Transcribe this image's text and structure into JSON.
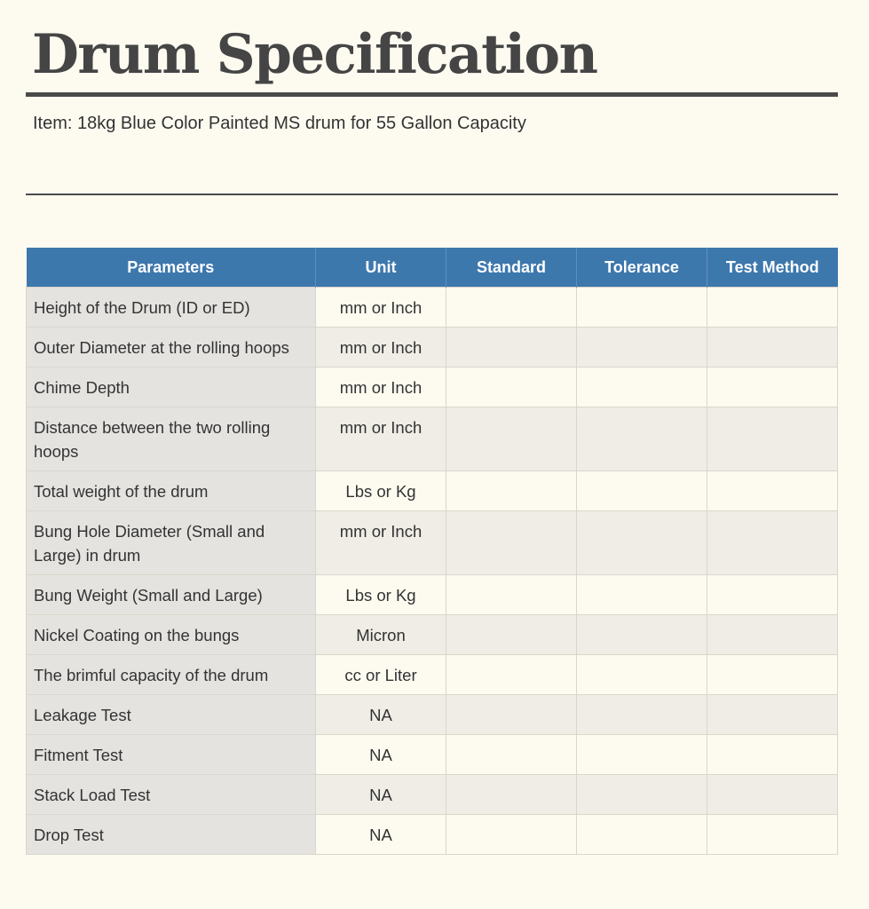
{
  "document": {
    "title": "Drum Specification",
    "item_line": "Item: 18kg Blue Color Painted MS drum for 55 Gallon Capacity"
  },
  "table": {
    "headers": [
      "Parameters",
      "Unit",
      "Standard",
      "Tolerance",
      "Test Method"
    ],
    "rows": [
      {
        "parameter": "Height of the Drum (ID or ED)",
        "unit": "mm or Inch",
        "standard": "",
        "tolerance": "",
        "test_method": ""
      },
      {
        "parameter": "Outer Diameter at the rolling hoops",
        "unit": "mm or Inch",
        "standard": "",
        "tolerance": "",
        "test_method": ""
      },
      {
        "parameter": "Chime Depth",
        "unit": "mm or Inch",
        "standard": "",
        "tolerance": "",
        "test_method": ""
      },
      {
        "parameter": "Distance between the two rolling hoops",
        "unit": "mm or Inch",
        "standard": "",
        "tolerance": "",
        "test_method": ""
      },
      {
        "parameter": "Total weight of the drum",
        "unit": "Lbs or Kg",
        "standard": "",
        "tolerance": "",
        "test_method": ""
      },
      {
        "parameter": "Bung Hole Diameter (Small and Large) in drum",
        "unit": "mm or Inch",
        "standard": "",
        "tolerance": "",
        "test_method": ""
      },
      {
        "parameter": "Bung Weight (Small and Large)",
        "unit": "Lbs or Kg",
        "standard": "",
        "tolerance": "",
        "test_method": ""
      },
      {
        "parameter": "Nickel Coating on the bungs",
        "unit": "Micron",
        "standard": "",
        "tolerance": "",
        "test_method": ""
      },
      {
        "parameter": "The brimful capacity of the drum",
        "unit": "cc or Liter",
        "standard": "",
        "tolerance": "",
        "test_method": ""
      },
      {
        "parameter": "Leakage Test",
        "unit": "NA",
        "standard": "",
        "tolerance": "",
        "test_method": ""
      },
      {
        "parameter": "Fitment Test",
        "unit": "NA",
        "standard": "",
        "tolerance": "",
        "test_method": ""
      },
      {
        "parameter": "Stack Load Test",
        "unit": "NA",
        "standard": "",
        "tolerance": "",
        "test_method": ""
      },
      {
        "parameter": "Drop Test",
        "unit": "NA",
        "standard": "",
        "tolerance": "",
        "test_method": ""
      }
    ]
  },
  "colors": {
    "page_background": "#fdfbf0",
    "header_background": "#3d78ad",
    "header_text": "#ffffff",
    "parameter_column_background": "#e4e3e0",
    "rule": "#4a4a4a"
  }
}
